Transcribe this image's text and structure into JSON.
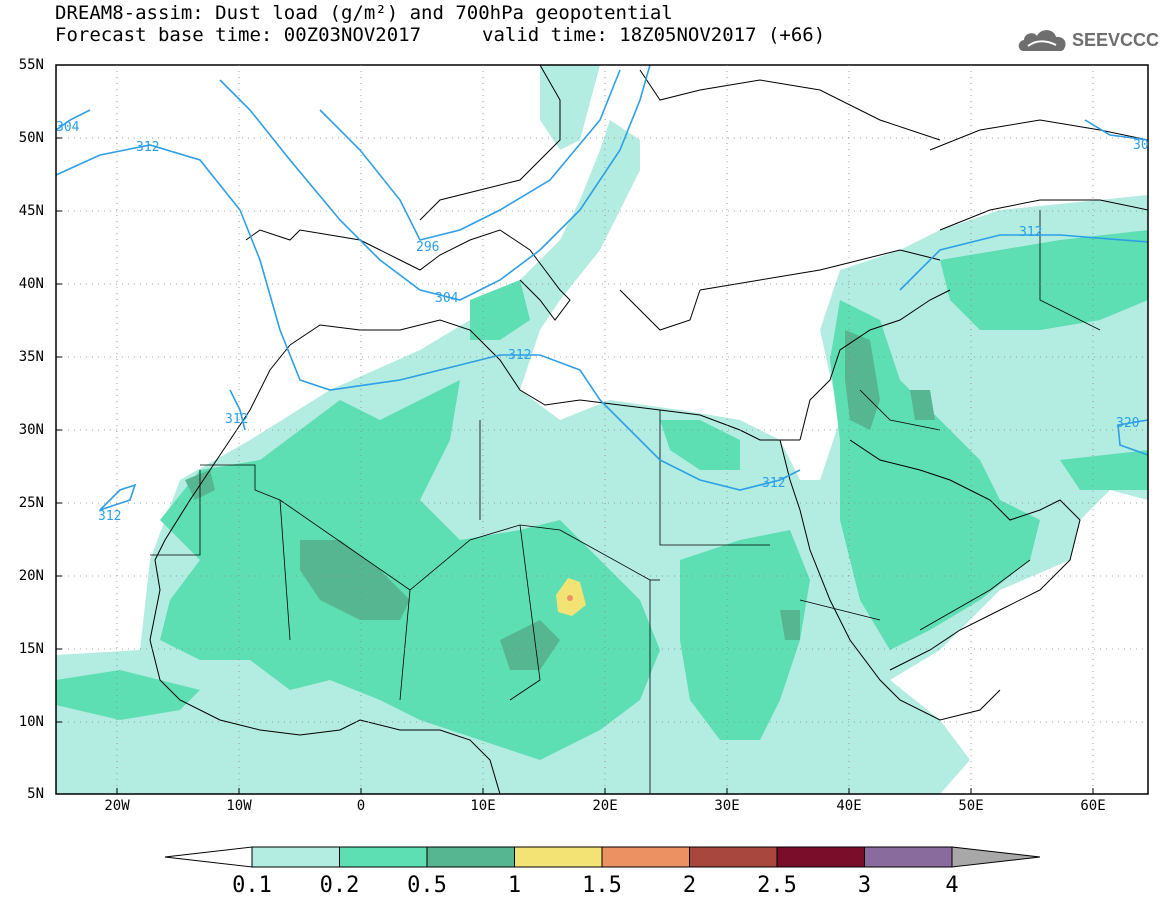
{
  "title": {
    "line1": "DREAM8-assim: Dust load (g/m²) and 700hPa geopotential",
    "line2": "Forecast base time: 00Z03NOV2017",
    "valid": "valid time: 18Z05NOV2017 (+66)"
  },
  "logo": {
    "text": "SEEVCCC",
    "icon": "cloud-icon"
  },
  "axes": {
    "lat_labels": [
      "55N",
      "50N",
      "45N",
      "40N",
      "35N",
      "30N",
      "25N",
      "20N",
      "15N",
      "10N",
      "5N"
    ],
    "lon_labels": [
      "20W",
      "10W",
      "0",
      "10E",
      "20E",
      "30E",
      "40E",
      "50E",
      "60E"
    ]
  },
  "contour_labels": [
    {
      "text": "304"
    },
    {
      "text": "312"
    },
    {
      "text": "296"
    },
    {
      "text": "304"
    },
    {
      "text": "312"
    },
    {
      "text": "312"
    },
    {
      "text": "312"
    },
    {
      "text": "312"
    },
    {
      "text": "312"
    },
    {
      "text": "30"
    },
    {
      "text": "320"
    }
  ],
  "colorbar": {
    "levels": [
      "0.1",
      "0.2",
      "0.5",
      "1",
      "1.5",
      "2",
      "2.5",
      "3",
      "4"
    ],
    "colors": [
      "#b3ece0",
      "#5ddeb3",
      "#56b691",
      "#f3e375",
      "#ec9161",
      "#a8473e",
      "#7a0d2a",
      "#8a6b9e"
    ],
    "under_color": "#ffffff",
    "over_color": "#a8a8a8"
  }
}
